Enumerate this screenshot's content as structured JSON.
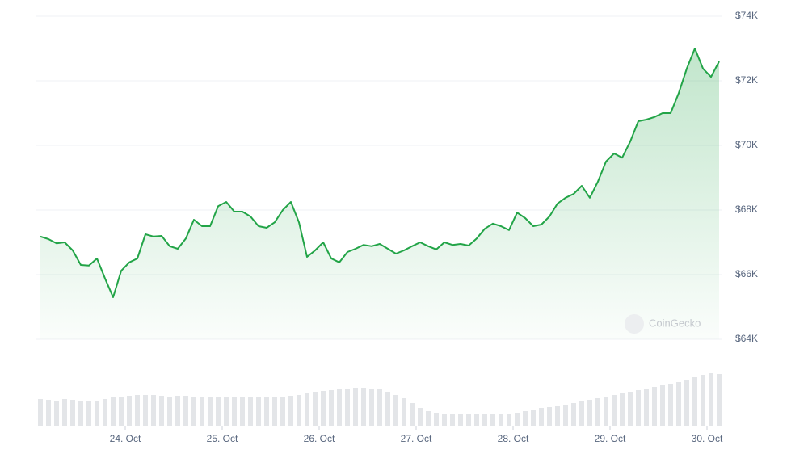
{
  "chart_data": {
    "type": "line",
    "watermark": "CoinGecko",
    "color": "#22a447",
    "grid": true,
    "xlim": [
      0,
      84
    ],
    "xticks": [
      {
        "value": 10.5,
        "label": "24. Oct"
      },
      {
        "value": 22.5,
        "label": "25. Oct"
      },
      {
        "value": 34.5,
        "label": "26. Oct"
      },
      {
        "value": 46.5,
        "label": "27. Oct"
      },
      {
        "value": 58.5,
        "label": "28. Oct"
      },
      {
        "value": 70.5,
        "label": "29. Oct"
      },
      {
        "value": 82.5,
        "label": "30. Oct"
      }
    ],
    "ylim": [
      64000,
      74000
    ],
    "yticks": [
      {
        "value": 64000,
        "label": "$64K"
      },
      {
        "value": 66000,
        "label": "$66K"
      },
      {
        "value": 68000,
        "label": "$68K"
      },
      {
        "value": 70000,
        "label": "$70K"
      },
      {
        "value": 72000,
        "label": "$72K"
      },
      {
        "value": 74000,
        "label": "$74K"
      }
    ],
    "series": [
      {
        "name": "Price",
        "color": "#22a447",
        "values": [
          67180,
          67100,
          66970,
          67000,
          66750,
          66300,
          66280,
          66500,
          65880,
          65300,
          66120,
          66380,
          66500,
          67250,
          67180,
          67200,
          66880,
          66800,
          67120,
          67700,
          67500,
          67500,
          68120,
          68250,
          67950,
          67950,
          67800,
          67500,
          67450,
          67620,
          68000,
          68250,
          67620,
          66550,
          66750,
          67000,
          66500,
          66380,
          66700,
          66800,
          66920,
          66880,
          66950,
          66800,
          66650,
          66750,
          66880,
          67000,
          66880,
          66780,
          67000,
          66920,
          66950,
          66900,
          67120,
          67420,
          67580,
          67500,
          67380,
          67920,
          67750,
          67500,
          67550,
          67800,
          68200,
          68380,
          68500,
          68750,
          68380,
          68880,
          69500,
          69750,
          69620,
          70120,
          70750,
          70800,
          70880,
          71000,
          71000,
          71620,
          72380,
          73000,
          72380,
          72120,
          72600
        ]
      },
      {
        "name": "Volume",
        "color": "#e3e5e8",
        "values": [
          33,
          32,
          31,
          33,
          32,
          31,
          30,
          31,
          33,
          35,
          36,
          37,
          38,
          38,
          38,
          37,
          36,
          37,
          37,
          36,
          36,
          36,
          35,
          35,
          36,
          36,
          36,
          35,
          35,
          36,
          36,
          37,
          38,
          40,
          42,
          43,
          44,
          45,
          46,
          47,
          47,
          46,
          45,
          42,
          38,
          34,
          28,
          22,
          18,
          16,
          15,
          15,
          15,
          15,
          14,
          14,
          14,
          14,
          15,
          16,
          18,
          20,
          22,
          23,
          24,
          26,
          28,
          30,
          32,
          34,
          36,
          38,
          40,
          42,
          44,
          46,
          48,
          50,
          52,
          54,
          56,
          60,
          63,
          65,
          64
        ]
      }
    ]
  }
}
